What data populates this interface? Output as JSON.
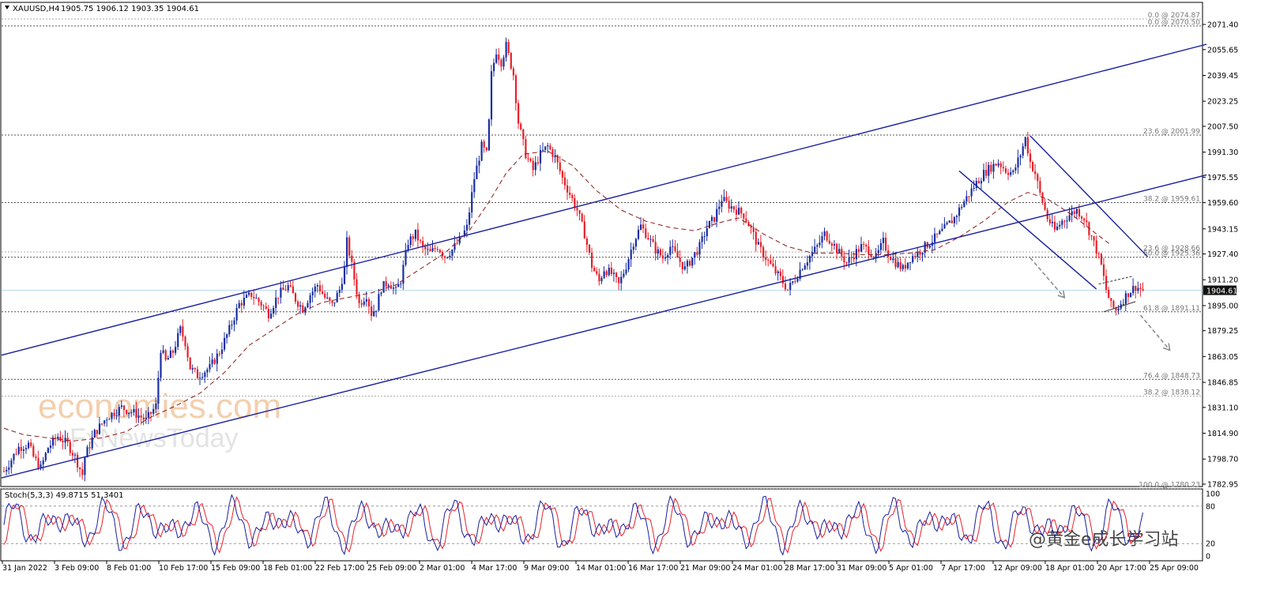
{
  "header": {
    "symbol": "XAUUSD,H4",
    "ohlc": "1905.75 1906.12 1903.35 1904.61"
  },
  "chart_data": {
    "type": "candlestick",
    "symbol": "XAUUSD",
    "timeframe": "H4",
    "open": 1905.75,
    "high": 1906.12,
    "low": 1903.35,
    "close": 1904.61,
    "last_price": "1904.61",
    "ylim": [
      1782.95,
      2080.0
    ],
    "price_ticks": [
      "2071.40",
      "2055.65",
      "2039.45",
      "2023.25",
      "2007.50",
      "1991.30",
      "1975.55",
      "1959.60",
      "1943.15",
      "1927.40",
      "1911.20",
      "1895.00",
      "1879.25",
      "1863.05",
      "1846.85",
      "1831.10",
      "1814.90",
      "1798.70",
      "1782.95"
    ],
    "x_labels": [
      "31 Jan 2022",
      "3 Feb 09:00",
      "8 Feb 01:00",
      "10 Feb 17:00",
      "15 Feb 09:00",
      "18 Feb 01:00",
      "22 Feb 17:00",
      "25 Feb 09:00",
      "2 Mar 01:00",
      "4 Mar 17:00",
      "9 Mar 09:00",
      "14 Mar 01:00",
      "16 Mar 17:00",
      "21 Mar 09:00",
      "24 Mar 01:00",
      "28 Mar 17:00",
      "31 Mar 09:00",
      "5 Apr 01:00",
      "7 Apr 17:00",
      "12 Apr 09:00",
      "18 Apr 01:00",
      "20 Apr 17:00",
      "25 Apr 09:00"
    ],
    "fib_levels": [
      {
        "label": "0.0 @ 2074.87",
        "price": 2074.87
      },
      {
        "label": "0.0 @ 2070.50",
        "price": 2070.5
      },
      {
        "label": "23.6 @ 2001.99",
        "price": 2001.99
      },
      {
        "label": "38.2 @ 1959.61",
        "price": 1959.61
      },
      {
        "label": "23.6 @ 1928.66",
        "price": 1928.66
      },
      {
        "label": "50.0 @ 1925.36",
        "price": 1925.36
      },
      {
        "label": "61.8 @ 1891.11",
        "price": 1891.11
      },
      {
        "label": "76.4 @ 1848.73",
        "price": 1848.73
      },
      {
        "label": "38.2 @ 1838.12",
        "price": 1838.12
      },
      {
        "label": "100.0 @ 1780.23",
        "price": 1780.23
      }
    ],
    "price_path": [
      [
        0,
        1791
      ],
      [
        6,
        1806
      ],
      [
        10,
        1808
      ],
      [
        12,
        1800
      ],
      [
        15,
        1793
      ],
      [
        18,
        1806
      ],
      [
        22,
        1813
      ],
      [
        26,
        1808
      ],
      [
        29,
        1800
      ],
      [
        32,
        1789
      ],
      [
        33,
        1800
      ],
      [
        37,
        1815
      ],
      [
        42,
        1825
      ],
      [
        48,
        1831
      ],
      [
        54,
        1827
      ],
      [
        58,
        1823
      ],
      [
        62,
        1832
      ],
      [
        64,
        1868
      ],
      [
        66,
        1860
      ],
      [
        69,
        1866
      ],
      [
        72,
        1880
      ],
      [
        74,
        1872
      ],
      [
        76,
        1856
      ],
      [
        79,
        1851
      ],
      [
        84,
        1856
      ],
      [
        88,
        1866
      ],
      [
        92,
        1880
      ],
      [
        96,
        1896
      ],
      [
        101,
        1902
      ],
      [
        105,
        1896
      ],
      [
        108,
        1890
      ],
      [
        112,
        1902
      ],
      [
        116,
        1907
      ],
      [
        119,
        1899
      ],
      [
        122,
        1893
      ],
      [
        125,
        1902
      ],
      [
        128,
        1908
      ],
      [
        131,
        1900
      ],
      [
        134,
        1895
      ],
      [
        137,
        1905
      ],
      [
        139,
        1918
      ],
      [
        140,
        1935
      ],
      [
        141,
        1928
      ],
      [
        143,
        1912
      ],
      [
        145,
        1896
      ],
      [
        148,
        1902
      ],
      [
        150,
        1890
      ],
      [
        152,
        1894
      ],
      [
        154,
        1906
      ],
      [
        157,
        1910
      ],
      [
        160,
        1904
      ],
      [
        162,
        1911
      ],
      [
        165,
        1935
      ],
      [
        168,
        1940
      ],
      [
        171,
        1931
      ],
      [
        174,
        1928
      ],
      [
        177,
        1932
      ],
      [
        180,
        1926
      ],
      [
        183,
        1930
      ],
      [
        186,
        1936
      ],
      [
        189,
        1944
      ],
      [
        192,
        1975
      ],
      [
        195,
        1995
      ],
      [
        197,
        1990
      ],
      [
        198,
        2010
      ],
      [
        199,
        2040
      ],
      [
        201,
        2055
      ],
      [
        203,
        2048
      ],
      [
        205,
        2058
      ],
      [
        208,
        2040
      ],
      [
        210,
        2010
      ],
      [
        213,
        1990
      ],
      [
        216,
        1980
      ],
      [
        219,
        1990
      ],
      [
        222,
        1995
      ],
      [
        225,
        1988
      ],
      [
        228,
        1975
      ],
      [
        231,
        1965
      ],
      [
        234,
        1955
      ],
      [
        237,
        1940
      ],
      [
        240,
        1920
      ],
      [
        243,
        1910
      ],
      [
        245,
        1918
      ],
      [
        248,
        1915
      ],
      [
        251,
        1908
      ],
      [
        254,
        1920
      ],
      [
        257,
        1935
      ],
      [
        260,
        1945
      ],
      [
        263,
        1938
      ],
      [
        266,
        1930
      ],
      [
        269,
        1925
      ],
      [
        272,
        1932
      ],
      [
        275,
        1925
      ],
      [
        278,
        1918
      ],
      [
        281,
        1925
      ],
      [
        284,
        1932
      ],
      [
        287,
        1944
      ],
      [
        290,
        1950
      ],
      [
        293,
        1962
      ],
      [
        296,
        1958
      ],
      [
        299,
        1955
      ],
      [
        302,
        1952
      ],
      [
        305,
        1943
      ],
      [
        308,
        1932
      ],
      [
        311,
        1925
      ],
      [
        314,
        1918
      ],
      [
        317,
        1912
      ],
      [
        320,
        1905
      ],
      [
        323,
        1912
      ],
      [
        326,
        1920
      ],
      [
        329,
        1926
      ],
      [
        332,
        1932
      ],
      [
        335,
        1940
      ],
      [
        338,
        1935
      ],
      [
        341,
        1928
      ],
      [
        344,
        1922
      ],
      [
        347,
        1927
      ],
      [
        350,
        1932
      ],
      [
        353,
        1930
      ],
      [
        356,
        1925
      ],
      [
        359,
        1935
      ],
      [
        361,
        1928
      ],
      [
        364,
        1922
      ],
      [
        367,
        1918
      ],
      [
        370,
        1925
      ],
      [
        373,
        1928
      ],
      [
        376,
        1932
      ],
      [
        379,
        1936
      ],
      [
        382,
        1940
      ],
      [
        385,
        1945
      ],
      [
        388,
        1950
      ],
      [
        391,
        1958
      ],
      [
        394,
        1965
      ],
      [
        397,
        1972
      ],
      [
        400,
        1978
      ],
      [
        403,
        1982
      ],
      [
        406,
        1985
      ],
      [
        409,
        1980
      ],
      [
        412,
        1978
      ],
      [
        415,
        1990
      ],
      [
        417,
        2000
      ],
      [
        419,
        1985
      ],
      [
        421,
        1978
      ],
      [
        423,
        1965
      ],
      [
        426,
        1950
      ],
      [
        429,
        1942
      ],
      [
        432,
        1948
      ],
      [
        435,
        1952
      ],
      [
        438,
        1955
      ],
      [
        441,
        1950
      ],
      [
        443,
        1942
      ],
      [
        446,
        1930
      ],
      [
        448,
        1920
      ],
      [
        450,
        1905
      ],
      [
        452,
        1895
      ],
      [
        454,
        1892
      ],
      [
        456,
        1897
      ],
      [
        459,
        1903
      ],
      [
        462,
        1907
      ],
      [
        465,
        1904.61
      ]
    ],
    "ma_path": [
      [
        0,
        1818
      ],
      [
        8,
        1814
      ],
      [
        18,
        1812
      ],
      [
        28,
        1810
      ],
      [
        40,
        1812
      ],
      [
        50,
        1816
      ],
      [
        60,
        1825
      ],
      [
        70,
        1832
      ],
      [
        80,
        1840
      ],
      [
        90,
        1853
      ],
      [
        100,
        1870
      ],
      [
        110,
        1880
      ],
      [
        120,
        1890
      ],
      [
        130,
        1897
      ],
      [
        140,
        1900
      ],
      [
        150,
        1903
      ],
      [
        160,
        1908
      ],
      [
        170,
        1918
      ],
      [
        180,
        1928
      ],
      [
        190,
        1942
      ],
      [
        198,
        1960
      ],
      [
        205,
        1978
      ],
      [
        212,
        1990
      ],
      [
        222,
        1992
      ],
      [
        232,
        1983
      ],
      [
        242,
        1967
      ],
      [
        252,
        1955
      ],
      [
        262,
        1948
      ],
      [
        272,
        1944
      ],
      [
        282,
        1942
      ],
      [
        292,
        1947
      ],
      [
        300,
        1950
      ],
      [
        310,
        1940
      ],
      [
        320,
        1932
      ],
      [
        330,
        1928
      ],
      [
        340,
        1928
      ],
      [
        350,
        1927
      ],
      [
        360,
        1927
      ],
      [
        370,
        1928
      ],
      [
        380,
        1930
      ],
      [
        390,
        1938
      ],
      [
        400,
        1948
      ],
      [
        410,
        1960
      ],
      [
        418,
        1966
      ],
      [
        426,
        1962
      ],
      [
        436,
        1952
      ],
      [
        446,
        1940
      ],
      [
        452,
        1933
      ]
    ],
    "stoch": {
      "label": "Stoch(5,3,3) 49.8715 51.3401",
      "k": 49.8715,
      "d": 51.3401,
      "ticks": [
        "100",
        "80",
        "20",
        "0"
      ],
      "levels": [
        80,
        20
      ]
    }
  },
  "watermark": {
    "brand": "economies.com",
    "sub": "FxNewsToday",
    "credit": "@黄金e成长学习站"
  },
  "colors": {
    "bull": "#1a2fa3",
    "bear": "#e8202a",
    "channel": "#1a1fa0",
    "ma": "#8b1a1a",
    "fib": "#555555",
    "price_line": "#bcd9ee"
  }
}
